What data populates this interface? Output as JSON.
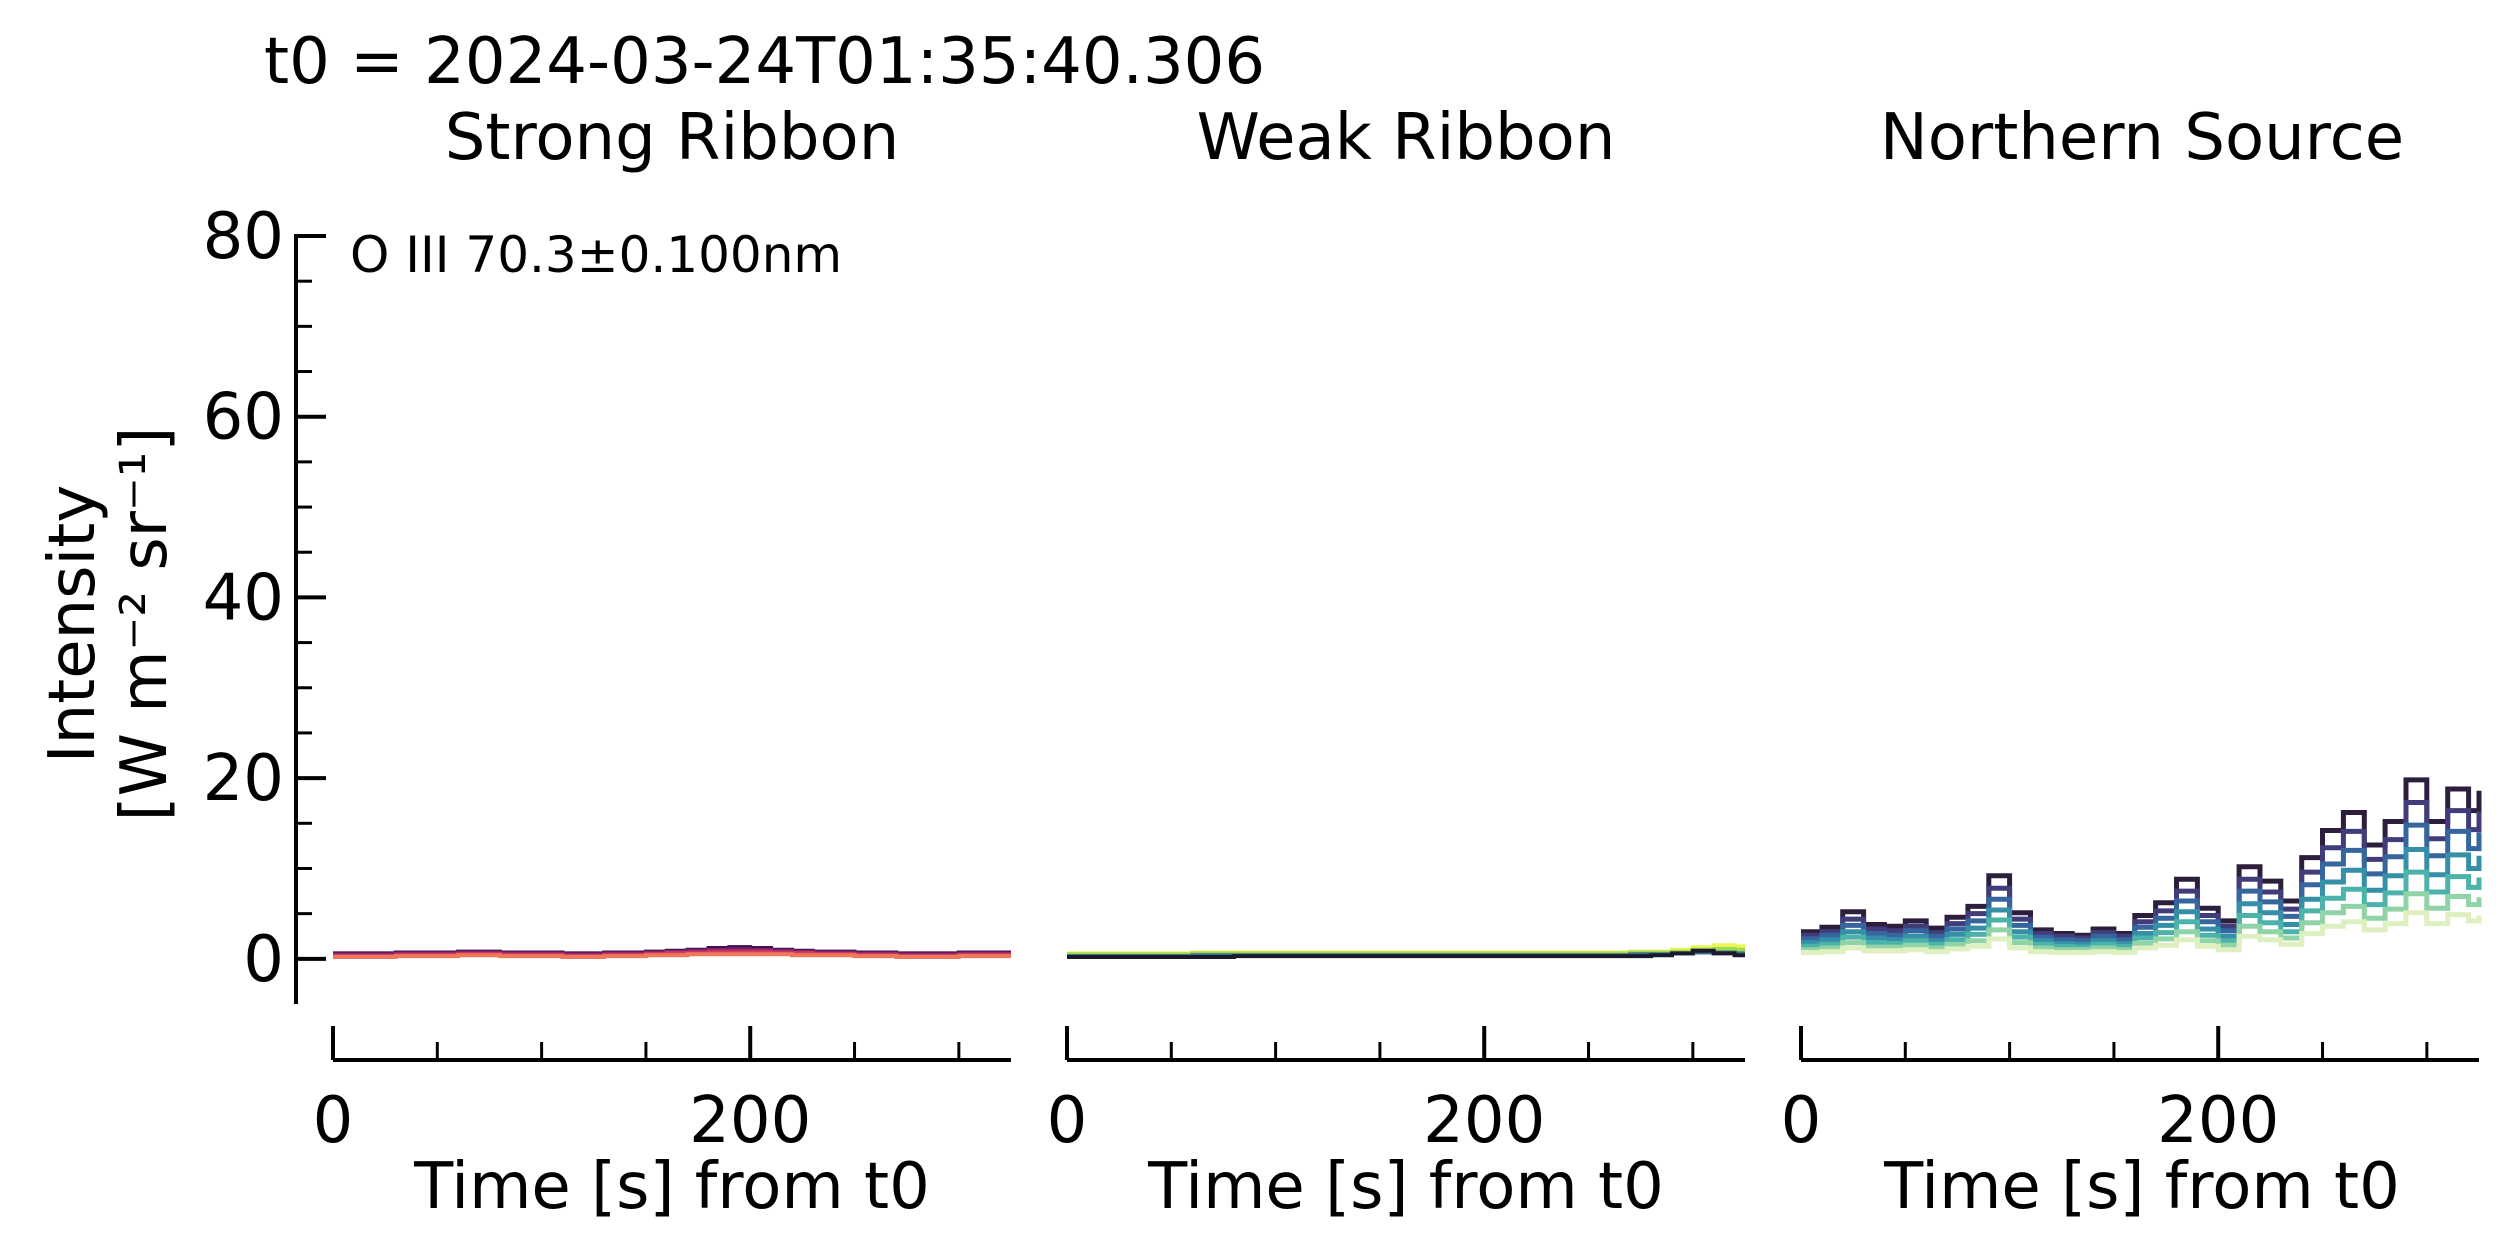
{
  "header": {
    "t0": "t0 = 2024-03-24T01:35:40.306"
  },
  "chart_data": [
    {
      "type": "line",
      "title": "Strong Ribbon",
      "xlabel": "Time [s] from t0",
      "ylabel_line1": "Intensity",
      "ylabel_line2": "[W m⁻² sr⁻¹]",
      "annotation": "O III 70.3±0.100nm",
      "xlim": [
        0,
        325
      ],
      "ylim": [
        -5,
        80
      ],
      "xticks": [
        0,
        200
      ],
      "xtick_labels": [
        "0",
        "200"
      ],
      "yticks": [
        0,
        20,
        40,
        60,
        80
      ],
      "ytick_labels": [
        "0",
        "20",
        "40",
        "60",
        "80"
      ],
      "x": [
        0,
        10,
        20,
        30,
        40,
        50,
        60,
        70,
        80,
        90,
        100,
        110,
        120,
        130,
        140,
        150,
        160,
        170,
        180,
        190,
        200,
        210,
        220,
        230,
        240,
        250,
        260,
        270,
        280,
        290,
        300,
        310,
        320,
        325
      ],
      "series": [
        {
          "color": "#3b0f4f",
          "values": [
            0.6,
            0.6,
            0.6,
            0.7,
            0.7,
            0.7,
            0.8,
            0.8,
            0.7,
            0.7,
            0.7,
            0.6,
            0.6,
            0.7,
            0.7,
            0.8,
            0.9,
            1.0,
            1.2,
            1.3,
            1.2,
            1.0,
            0.9,
            0.8,
            0.8,
            0.7,
            0.7,
            0.6,
            0.6,
            0.6,
            0.7,
            0.7,
            0.7,
            0.7
          ]
        },
        {
          "color": "#6a1d67",
          "values": [
            0.5,
            0.5,
            0.5,
            0.6,
            0.6,
            0.6,
            0.7,
            0.7,
            0.6,
            0.6,
            0.6,
            0.5,
            0.5,
            0.6,
            0.6,
            0.7,
            0.8,
            0.9,
            1.0,
            1.1,
            1.0,
            0.9,
            0.8,
            0.7,
            0.7,
            0.6,
            0.6,
            0.5,
            0.5,
            0.5,
            0.6,
            0.6,
            0.6,
            0.6
          ]
        },
        {
          "color": "#a1296b",
          "values": [
            0.4,
            0.4,
            0.4,
            0.5,
            0.5,
            0.5,
            0.6,
            0.6,
            0.5,
            0.5,
            0.5,
            0.4,
            0.4,
            0.5,
            0.5,
            0.6,
            0.7,
            0.8,
            0.9,
            0.9,
            0.9,
            0.8,
            0.7,
            0.6,
            0.6,
            0.5,
            0.5,
            0.4,
            0.4,
            0.4,
            0.5,
            0.5,
            0.5,
            0.5
          ]
        },
        {
          "color": "#d43e5a",
          "values": [
            0.3,
            0.3,
            0.3,
            0.4,
            0.4,
            0.4,
            0.5,
            0.5,
            0.4,
            0.4,
            0.4,
            0.3,
            0.3,
            0.4,
            0.4,
            0.5,
            0.6,
            0.6,
            0.7,
            0.7,
            0.7,
            0.6,
            0.6,
            0.5,
            0.5,
            0.4,
            0.4,
            0.3,
            0.3,
            0.3,
            0.4,
            0.4,
            0.4,
            0.4
          ]
        },
        {
          "color": "#f0785a",
          "values": [
            0.2,
            0.2,
            0.2,
            0.3,
            0.3,
            0.3,
            0.4,
            0.4,
            0.3,
            0.3,
            0.3,
            0.2,
            0.2,
            0.3,
            0.3,
            0.4,
            0.4,
            0.5,
            0.5,
            0.5,
            0.5,
            0.5,
            0.4,
            0.4,
            0.4,
            0.3,
            0.3,
            0.2,
            0.2,
            0.2,
            0.3,
            0.3,
            0.3,
            0.3
          ]
        }
      ]
    },
    {
      "type": "line",
      "title": "Weak Ribbon",
      "xlabel": "Time [s] from t0",
      "xlim": [
        0,
        325
      ],
      "ylim": [
        -5,
        80
      ],
      "xticks": [
        0,
        200
      ],
      "xtick_labels": [
        "0",
        "200"
      ],
      "x": [
        0,
        10,
        20,
        30,
        40,
        50,
        60,
        70,
        80,
        90,
        100,
        110,
        120,
        130,
        140,
        150,
        160,
        170,
        180,
        190,
        200,
        210,
        220,
        230,
        240,
        250,
        260,
        270,
        280,
        290,
        300,
        310,
        320,
        325
      ],
      "series": [
        {
          "color": "#e9f55a",
          "values": [
            0.6,
            0.6,
            0.6,
            0.6,
            0.6,
            0.6,
            0.7,
            0.7,
            0.7,
            0.7,
            0.7,
            0.7,
            0.7,
            0.7,
            0.7,
            0.7,
            0.7,
            0.7,
            0.7,
            0.7,
            0.7,
            0.7,
            0.7,
            0.7,
            0.7,
            0.7,
            0.7,
            0.8,
            0.8,
            1.0,
            1.3,
            1.5,
            1.4,
            1.4
          ]
        },
        {
          "color": "#a3d94d",
          "values": [
            0.5,
            0.5,
            0.5,
            0.5,
            0.5,
            0.5,
            0.6,
            0.6,
            0.6,
            0.6,
            0.6,
            0.6,
            0.6,
            0.6,
            0.6,
            0.6,
            0.6,
            0.6,
            0.6,
            0.6,
            0.6,
            0.6,
            0.6,
            0.6,
            0.6,
            0.6,
            0.6,
            0.7,
            0.7,
            0.8,
            1.0,
            1.1,
            1.0,
            1.0
          ]
        },
        {
          "color": "#3a6e8f",
          "values": [
            0.3,
            0.3,
            0.3,
            0.3,
            0.3,
            0.3,
            0.4,
            0.4,
            0.4,
            0.4,
            0.4,
            0.4,
            0.4,
            0.4,
            0.4,
            0.4,
            0.4,
            0.4,
            0.4,
            0.4,
            0.4,
            0.4,
            0.4,
            0.4,
            0.4,
            0.4,
            0.4,
            0.5,
            0.5,
            0.6,
            0.7,
            0.7,
            0.6,
            0.6
          ]
        },
        {
          "color": "#1a1a2e",
          "values": [
            0.2,
            0.2,
            0.2,
            0.2,
            0.2,
            0.2,
            0.2,
            0.2,
            0.3,
            0.3,
            0.3,
            0.3,
            0.3,
            0.3,
            0.3,
            0.3,
            0.3,
            0.3,
            0.3,
            0.3,
            0.3,
            0.3,
            0.3,
            0.3,
            0.3,
            0.3,
            0.3,
            0.3,
            0.4,
            0.6,
            0.9,
            0.6,
            0.4,
            0.4
          ]
        }
      ]
    },
    {
      "type": "line",
      "title": "Northern Source",
      "xlabel": "Time [s] from t0",
      "xlim": [
        0,
        325
      ],
      "ylim": [
        -5,
        80
      ],
      "xticks": [
        0,
        200
      ],
      "xtick_labels": [
        "0",
        "200"
      ],
      "x": [
        0,
        10,
        20,
        30,
        40,
        50,
        60,
        70,
        80,
        90,
        100,
        110,
        120,
        130,
        140,
        150,
        160,
        170,
        180,
        190,
        200,
        210,
        220,
        230,
        240,
        250,
        260,
        270,
        280,
        290,
        300,
        310,
        320,
        325
      ],
      "series": [
        {
          "color": "#2d1e3e",
          "values": [
            3.0,
            3.5,
            5.2,
            3.8,
            3.6,
            4.2,
            3.4,
            4.6,
            5.8,
            9.2,
            5.1,
            3.2,
            2.8,
            2.6,
            3.3,
            2.8,
            4.8,
            6.2,
            8.8,
            5.6,
            4.2,
            10.2,
            8.6,
            6.4,
            11.2,
            14.2,
            16.2,
            12.6,
            15.2,
            19.8,
            15.2,
            18.8,
            16.4,
            18.6
          ]
        },
        {
          "color": "#413d7b",
          "values": [
            2.6,
            3.0,
            4.4,
            3.3,
            3.1,
            3.6,
            2.9,
            3.9,
            5.0,
            7.8,
            4.4,
            2.8,
            2.5,
            2.3,
            2.9,
            2.5,
            4.1,
            5.3,
            7.5,
            4.8,
            3.6,
            8.8,
            7.4,
            5.5,
            9.6,
            12.3,
            14.1,
            11.0,
            13.2,
            17.3,
            13.3,
            16.4,
            14.3,
            16.3
          ]
        },
        {
          "color": "#37659e",
          "values": [
            2.2,
            2.6,
            3.7,
            2.8,
            2.6,
            3.1,
            2.5,
            3.3,
            4.2,
            6.6,
            3.7,
            2.4,
            2.1,
            2.0,
            2.5,
            2.1,
            3.5,
            4.5,
            6.4,
            4.1,
            3.1,
            7.5,
            6.3,
            4.7,
            8.2,
            10.5,
            12.0,
            9.4,
            11.3,
            14.8,
            11.4,
            14.1,
            12.2,
            14.0
          ]
        },
        {
          "color": "#348fa7",
          "values": [
            1.8,
            2.1,
            3.0,
            2.3,
            2.1,
            2.5,
            2.0,
            2.7,
            3.4,
            5.4,
            3.0,
            2.0,
            1.7,
            1.6,
            2.0,
            1.7,
            2.8,
            3.7,
            5.2,
            3.3,
            2.5,
            6.1,
            5.1,
            3.8,
            6.6,
            8.5,
            9.8,
            7.6,
            9.2,
            12.1,
            9.3,
            11.5,
            10.0,
            11.4
          ]
        },
        {
          "color": "#4cb3aa",
          "values": [
            1.4,
            1.6,
            2.4,
            1.8,
            1.7,
            2.0,
            1.6,
            2.1,
            2.7,
            4.3,
            2.4,
            1.6,
            1.4,
            1.3,
            1.6,
            1.4,
            2.3,
            2.9,
            4.1,
            2.6,
            2.0,
            4.8,
            4.0,
            3.0,
            5.3,
            6.7,
            7.7,
            6.0,
            7.3,
            9.6,
            7.4,
            9.1,
            7.9,
            9.0
          ]
        },
        {
          "color": "#8fd3a6",
          "values": [
            1.0,
            1.2,
            1.8,
            1.3,
            1.3,
            1.5,
            1.2,
            1.6,
            2.0,
            3.2,
            1.8,
            1.2,
            1.0,
            1.0,
            1.2,
            1.0,
            1.7,
            2.2,
            3.0,
            2.0,
            1.5,
            3.6,
            3.0,
            2.3,
            4.0,
            5.1,
            5.8,
            4.5,
            5.5,
            7.2,
            5.6,
            6.9,
            6.0,
            6.8
          ]
        },
        {
          "color": "#dff0c0",
          "values": [
            0.7,
            0.8,
            1.2,
            0.9,
            0.9,
            1.0,
            0.8,
            1.1,
            1.4,
            2.2,
            1.2,
            0.8,
            0.7,
            0.7,
            0.8,
            0.7,
            1.2,
            1.5,
            2.1,
            1.4,
            1.0,
            2.5,
            2.1,
            1.6,
            2.8,
            3.6,
            4.1,
            3.2,
            3.9,
            5.1,
            3.9,
            4.9,
            4.2,
            4.8
          ]
        }
      ]
    }
  ]
}
